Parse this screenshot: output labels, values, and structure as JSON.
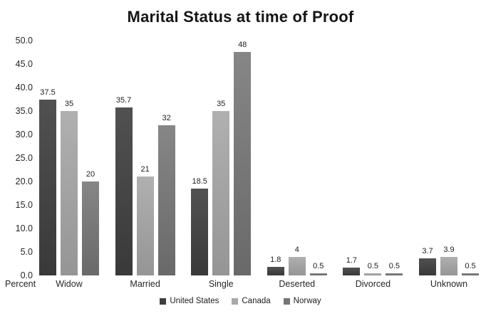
{
  "chart_data": {
    "type": "bar",
    "title": "Marital Status at time of Proof",
    "percent_label": "Percent",
    "categories": [
      "Widow",
      "Married",
      "Single",
      "Deserted",
      "Divorced",
      "Unknown"
    ],
    "series": [
      {
        "name": "United States",
        "values": [
          37.5,
          35.7,
          18.5,
          1.8,
          1.7,
          3.7
        ],
        "labels": [
          "37.5",
          "35.7",
          "18.5",
          "1.8",
          "1.7",
          "3.7"
        ],
        "bar_color_top": "#515151",
        "bar_color_bottom": "#393939",
        "legend_color": "#3f3f3f"
      },
      {
        "name": "Canada",
        "values": [
          35,
          21,
          35,
          4,
          0.5,
          3.9
        ],
        "labels": [
          "35",
          "21",
          "35",
          "4",
          "0.5",
          "3.9"
        ],
        "bar_color_top": "#b0b0b0",
        "bar_color_bottom": "#959595",
        "legend_color": "#a9a9a9"
      },
      {
        "name": "Norway",
        "values": [
          20,
          32,
          48,
          0.5,
          0.5,
          0.5
        ],
        "labels": [
          "20",
          "32",
          "48",
          "0.5",
          "0.5",
          "0.5"
        ],
        "bar_color_top": "#868686",
        "bar_color_bottom": "#696969",
        "legend_color": "#757575"
      }
    ],
    "ylim": [
      0,
      50
    ],
    "ytick_step": 5,
    "yticks": [
      "0.0",
      "5.0",
      "10.0",
      "15.0",
      "20.0",
      "25.0",
      "30.0",
      "35.0",
      "40.0",
      "45.0",
      "50.0"
    ],
    "grid": false,
    "axis_lines": false,
    "legend_position": "bottom",
    "data_labels": "above bars"
  }
}
